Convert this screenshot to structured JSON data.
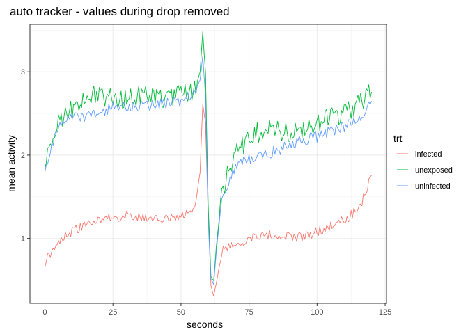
{
  "chart_data": {
    "type": "line",
    "title": "auto tracker - values during drop removed",
    "xlabel": "seconds",
    "ylabel": "mean activity",
    "xlim": [
      -5.5,
      125.5
    ],
    "ylim": [
      0.22,
      3.57
    ],
    "x_ticks": [
      0,
      25,
      50,
      75,
      100,
      125
    ],
    "y_ticks": [
      1,
      2,
      3
    ],
    "grid": true,
    "legend": {
      "title": "trt",
      "position": "right"
    },
    "x": [
      0,
      5,
      10,
      15,
      20,
      25,
      30,
      35,
      40,
      45,
      50,
      55,
      57,
      58,
      59,
      60,
      61,
      62,
      63,
      65,
      70,
      75,
      80,
      85,
      90,
      95,
      100,
      105,
      110,
      115,
      118,
      120
    ],
    "series": [
      {
        "name": "infected",
        "color": "#F8766D",
        "values": [
          0.72,
          0.98,
          1.08,
          1.15,
          1.22,
          1.26,
          1.27,
          1.24,
          1.22,
          1.23,
          1.28,
          1.33,
          1.8,
          2.62,
          2.4,
          1.3,
          0.45,
          0.3,
          0.48,
          0.85,
          0.93,
          1.0,
          1.05,
          1.04,
          1.02,
          1.02,
          1.08,
          1.15,
          1.22,
          1.35,
          1.55,
          1.76
        ]
      },
      {
        "name": "unexposed",
        "color": "#00BA38",
        "values": [
          1.93,
          2.4,
          2.55,
          2.68,
          2.72,
          2.68,
          2.65,
          2.72,
          2.7,
          2.68,
          2.72,
          2.78,
          3.0,
          3.48,
          3.0,
          1.4,
          0.55,
          0.48,
          0.9,
          1.55,
          2.02,
          2.22,
          2.3,
          2.28,
          2.25,
          2.3,
          2.4,
          2.45,
          2.5,
          2.6,
          2.72,
          2.76
        ]
      },
      {
        "name": "uninfected",
        "color": "#619CFF",
        "values": [
          1.86,
          2.32,
          2.45,
          2.45,
          2.5,
          2.58,
          2.6,
          2.58,
          2.6,
          2.62,
          2.65,
          2.75,
          2.9,
          3.2,
          2.7,
          1.2,
          0.5,
          0.45,
          0.85,
          1.45,
          1.88,
          1.95,
          2.0,
          2.05,
          2.12,
          2.18,
          2.22,
          2.28,
          2.35,
          2.42,
          2.55,
          2.65
        ]
      }
    ]
  }
}
